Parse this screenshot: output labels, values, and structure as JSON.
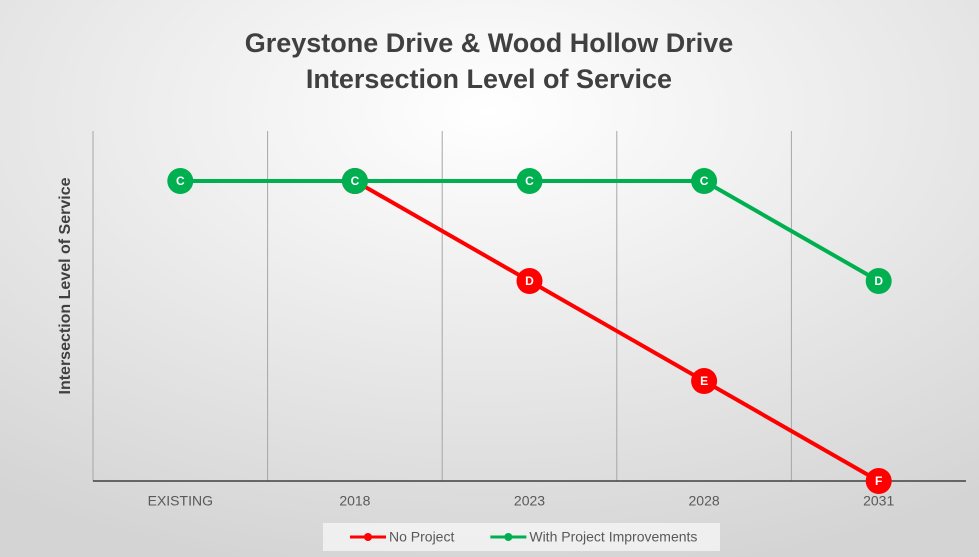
{
  "chart_data": {
    "type": "line",
    "title": [
      "Greystone Drive & Wood Hollow Drive",
      "Intersection Level of Service"
    ],
    "y_label": "Intersection Level of Service",
    "categories": [
      "EXISTING",
      "2018",
      "2023",
      "2028",
      "2031"
    ],
    "ylim": [
      0,
      3.5
    ],
    "grid": true,
    "legend": "bottom",
    "series": [
      {
        "name": "No Project",
        "color": "#ff0000",
        "values": [
          null,
          3,
          2,
          1,
          0
        ],
        "value_labels": [
          null,
          null,
          "D",
          "E",
          "F"
        ]
      },
      {
        "name": "With Project Improvements",
        "color": "#00b050",
        "values": [
          3,
          3,
          3,
          3,
          2
        ],
        "value_labels": [
          "C",
          "C",
          "C",
          "C",
          "D"
        ]
      }
    ]
  }
}
